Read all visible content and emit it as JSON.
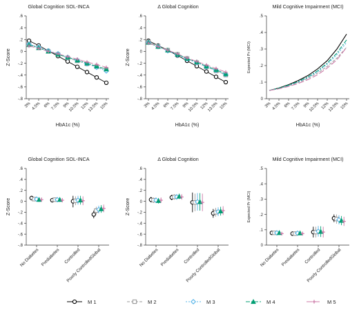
{
  "colors": {
    "M 1": "#000000",
    "M 2": "#9a9a9a",
    "M 3": "#56b4e9",
    "M 4": "#009e73",
    "M 5": "#cc79a7"
  },
  "legend": {
    "items": [
      {
        "label": "M 1",
        "marker": "circle",
        "color": "#000000",
        "dash": ""
      },
      {
        "label": "M 2",
        "marker": "square",
        "color": "#9a9a9a",
        "dash": "4,2"
      },
      {
        "label": "M 3",
        "marker": "diamond",
        "color": "#56b4e9",
        "dash": "2,2"
      },
      {
        "label": "M 4",
        "marker": "triangle",
        "color": "#009e73",
        "dash": "6,2,2,2"
      },
      {
        "label": "M 5",
        "marker": "plus",
        "color": "#cc79a7",
        "dash": "8,3"
      }
    ]
  },
  "chart_data": [
    {
      "id": "p1",
      "type": "line",
      "title": "Global Cognition SOL-INCA",
      "xlabel": "HbA1c (%)",
      "ylabel": "Z-Score",
      "x": [
        3,
        4.5,
        6,
        7.5,
        9,
        10.5,
        12,
        13.5,
        15
      ],
      "xticks": [
        "3%",
        "4.5%",
        "6%",
        "7.5%",
        "9%",
        "10.5%",
        "12%",
        "13.5%",
        "15%"
      ],
      "yticks": [
        ".6",
        ".4",
        ".2",
        "0",
        "-.2",
        "-.4",
        "-.6",
        "-.8"
      ],
      "ylim": [
        -0.8,
        0.6
      ],
      "series": [
        {
          "name": "M 1",
          "values": [
            0.18,
            0.1,
            0.01,
            -0.08,
            -0.17,
            -0.26,
            -0.35,
            -0.44,
            -0.53
          ]
        },
        {
          "name": "M 2",
          "values": [
            0.12,
            0.06,
            0.0,
            -0.05,
            -0.11,
            -0.16,
            -0.21,
            -0.26,
            -0.31
          ]
        },
        {
          "name": "M 3",
          "values": [
            0.12,
            0.07,
            0.01,
            -0.04,
            -0.1,
            -0.15,
            -0.21,
            -0.27,
            -0.33
          ]
        },
        {
          "name": "M 4",
          "values": [
            0.11,
            0.06,
            0.0,
            -0.05,
            -0.1,
            -0.15,
            -0.2,
            -0.25,
            -0.3
          ]
        },
        {
          "name": "M 5",
          "values": [
            0.09,
            0.05,
            0.0,
            -0.04,
            -0.09,
            -0.13,
            -0.18,
            -0.22,
            -0.27
          ]
        }
      ]
    },
    {
      "id": "p2",
      "type": "line",
      "title": "Δ Global Cognition",
      "xlabel": "HbA1c (%)",
      "ylabel": "Z-Score",
      "x": [
        3,
        4.5,
        6,
        7.5,
        9,
        10.5,
        12,
        13.5,
        15
      ],
      "xticks": [
        "3%",
        "4.5%",
        "6%",
        "7.5%",
        "9%",
        "10.5%",
        "12%",
        "13.5%",
        "15%"
      ],
      "yticks": [
        ".6",
        ".4",
        ".2",
        "0",
        "-.2",
        "-.4",
        "-.6",
        "-.8"
      ],
      "ylim": [
        -0.8,
        0.6
      ],
      "series": [
        {
          "name": "M 1",
          "values": [
            0.18,
            0.1,
            0.02,
            -0.07,
            -0.16,
            -0.25,
            -0.34,
            -0.43,
            -0.52
          ]
        },
        {
          "name": "M 2",
          "values": [
            0.16,
            0.09,
            0.02,
            -0.05,
            -0.12,
            -0.19,
            -0.26,
            -0.33,
            -0.4
          ]
        },
        {
          "name": "M 3",
          "values": [
            0.15,
            0.08,
            0.01,
            -0.06,
            -0.13,
            -0.19,
            -0.26,
            -0.32,
            -0.39
          ]
        },
        {
          "name": "M 4",
          "values": [
            0.15,
            0.08,
            0.02,
            -0.05,
            -0.12,
            -0.18,
            -0.25,
            -0.31,
            -0.38
          ]
        },
        {
          "name": "M 5",
          "values": [
            0.14,
            0.08,
            0.02,
            -0.04,
            -0.11,
            -0.17,
            -0.23,
            -0.29,
            -0.35
          ]
        }
      ]
    },
    {
      "id": "p3",
      "type": "line",
      "title": "Mild Cognitive Impairment (MCI)",
      "xlabel": "HbA1c (%)",
      "ylabel": "Expected Pr (MCI)",
      "x": [
        3,
        4.5,
        6,
        7.5,
        9,
        10.5,
        12,
        13.5,
        15
      ],
      "xticks": [
        "3%",
        "4.5%",
        "6%",
        "7.5%",
        "9%",
        "10.5%",
        "12%",
        "13.5%",
        "15%"
      ],
      "yticks": [
        ".5",
        ".4",
        ".3",
        ".2",
        ".1",
        "0"
      ],
      "ylim": [
        0,
        0.5
      ],
      "series": [
        {
          "name": "M 1",
          "values": [
            0.05,
            0.065,
            0.085,
            0.11,
            0.14,
            0.18,
            0.23,
            0.3,
            0.39
          ]
        },
        {
          "name": "M 2",
          "values": [
            0.05,
            0.062,
            0.078,
            0.098,
            0.123,
            0.155,
            0.195,
            0.245,
            0.31
          ]
        },
        {
          "name": "M 3",
          "values": [
            0.05,
            0.063,
            0.08,
            0.101,
            0.128,
            0.163,
            0.208,
            0.265,
            0.34
          ]
        },
        {
          "name": "M 4",
          "values": [
            0.05,
            0.064,
            0.082,
            0.104,
            0.132,
            0.168,
            0.215,
            0.275,
            0.355
          ]
        },
        {
          "name": "M 5",
          "values": [
            0.05,
            0.06,
            0.074,
            0.092,
            0.115,
            0.145,
            0.185,
            0.235,
            0.31
          ]
        }
      ]
    },
    {
      "id": "p4",
      "type": "scatter",
      "title": "Global Cognition SOL-INCA",
      "ylabel": "Z-Score",
      "categories": [
        "No Diabetes",
        "Prediabetes",
        "Controlled",
        "Poorly ControlledGlobal"
      ],
      "yticks": [
        ".6",
        ".4",
        ".2",
        "0",
        "-.2",
        "-.4",
        "-.6",
        "-.8"
      ],
      "ylim": [
        -0.8,
        0.6
      ],
      "series": [
        {
          "name": "M 1",
          "values": [
            0.06,
            0.02,
            0.0,
            -0.24
          ],
          "low": [
            0.02,
            -0.02,
            -0.11,
            -0.31
          ],
          "high": [
            0.1,
            0.06,
            0.1,
            -0.17
          ]
        },
        {
          "name": "M 2",
          "values": [
            0.04,
            0.03,
            0.01,
            -0.17
          ],
          "low": [
            0.0,
            -0.01,
            -0.07,
            -0.24
          ],
          "high": [
            0.08,
            0.07,
            0.09,
            -0.1
          ]
        },
        {
          "name": "M 3",
          "values": [
            0.04,
            0.03,
            0.02,
            -0.15
          ],
          "low": [
            0.0,
            -0.01,
            -0.06,
            -0.22
          ],
          "high": [
            0.08,
            0.07,
            0.1,
            -0.08
          ]
        },
        {
          "name": "M 4",
          "values": [
            0.03,
            0.03,
            0.02,
            -0.14
          ],
          "low": [
            -0.01,
            -0.01,
            -0.06,
            -0.21
          ],
          "high": [
            0.07,
            0.07,
            0.1,
            -0.07
          ]
        },
        {
          "name": "M 5",
          "values": [
            0.03,
            0.02,
            0.01,
            -0.13
          ],
          "low": [
            -0.01,
            -0.02,
            -0.07,
            -0.2
          ],
          "high": [
            0.07,
            0.06,
            0.09,
            -0.06
          ]
        }
      ]
    },
    {
      "id": "p5",
      "type": "scatter",
      "title": "Δ Global Cognition",
      "ylabel": "Z-Score",
      "categories": [
        "No Diabetes",
        "Prediabetes",
        "Controlled",
        "Poorly ControlledGlobal"
      ],
      "yticks": [
        ".6",
        ".4",
        ".2",
        "0",
        "-.2",
        "-.4",
        "-.6",
        "-.8"
      ],
      "ylim": [
        -0.8,
        0.6
      ],
      "series": [
        {
          "name": "M 1",
          "values": [
            0.03,
            0.07,
            -0.02,
            -0.22
          ],
          "low": [
            -0.02,
            0.02,
            -0.2,
            -0.3
          ],
          "high": [
            0.08,
            0.12,
            0.16,
            -0.14
          ]
        },
        {
          "name": "M 2",
          "values": [
            0.02,
            0.08,
            -0.02,
            -0.2
          ],
          "low": [
            -0.03,
            0.03,
            -0.18,
            -0.28
          ],
          "high": [
            0.07,
            0.13,
            0.14,
            -0.12
          ]
        },
        {
          "name": "M 3",
          "values": [
            0.02,
            0.08,
            -0.01,
            -0.19
          ],
          "low": [
            -0.03,
            0.03,
            -0.17,
            -0.27
          ],
          "high": [
            0.07,
            0.13,
            0.15,
            -0.11
          ]
        },
        {
          "name": "M 4",
          "values": [
            0.01,
            0.09,
            -0.01,
            -0.18
          ],
          "low": [
            -0.04,
            0.04,
            -0.17,
            -0.26
          ],
          "high": [
            0.06,
            0.14,
            0.15,
            -0.1
          ]
        },
        {
          "name": "M 5",
          "values": [
            0.02,
            0.08,
            -0.02,
            -0.17
          ],
          "low": [
            -0.03,
            0.03,
            -0.18,
            -0.25
          ],
          "high": [
            0.07,
            0.13,
            0.14,
            -0.09
          ]
        }
      ]
    },
    {
      "id": "p6",
      "type": "scatter",
      "title": "Mild Cognitive Impairment (MCI)",
      "ylabel": "Expected Pr (MCI)",
      "categories": [
        "No Diabetes",
        "Prediabetes",
        "Controlled",
        "Poorly ControlledGlobal"
      ],
      "yticks": [
        ".5",
        ".4",
        ".3",
        ".2",
        ".1",
        "0"
      ],
      "ylim": [
        0,
        0.5
      ],
      "series": [
        {
          "name": "M 1",
          "values": [
            0.08,
            0.075,
            0.085,
            0.175
          ],
          "low": [
            0.07,
            0.06,
            0.05,
            0.15
          ],
          "high": [
            0.09,
            0.09,
            0.12,
            0.2
          ]
        },
        {
          "name": "M 2",
          "values": [
            0.08,
            0.075,
            0.085,
            0.17
          ],
          "low": [
            0.07,
            0.06,
            0.05,
            0.14
          ],
          "high": [
            0.09,
            0.09,
            0.12,
            0.2
          ]
        },
        {
          "name": "M 3",
          "values": [
            0.08,
            0.078,
            0.09,
            0.165
          ],
          "low": [
            0.07,
            0.065,
            0.055,
            0.135
          ],
          "high": [
            0.09,
            0.091,
            0.125,
            0.195
          ]
        },
        {
          "name": "M 4",
          "values": [
            0.08,
            0.078,
            0.088,
            0.16
          ],
          "low": [
            0.07,
            0.065,
            0.053,
            0.13
          ],
          "high": [
            0.09,
            0.091,
            0.123,
            0.19
          ]
        },
        {
          "name": "M 5",
          "values": [
            0.075,
            0.075,
            0.085,
            0.155
          ],
          "low": [
            0.065,
            0.062,
            0.05,
            0.125
          ],
          "high": [
            0.085,
            0.088,
            0.12,
            0.185
          ]
        }
      ]
    }
  ]
}
